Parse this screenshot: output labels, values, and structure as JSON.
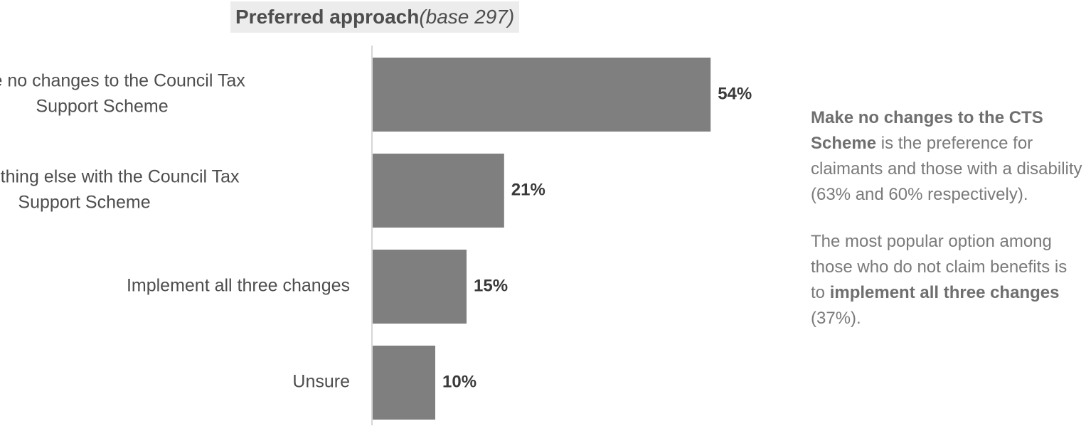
{
  "title": {
    "main": "Preferred approach",
    "sub": "(base 297)"
  },
  "chart_data": {
    "type": "bar",
    "orientation": "horizontal",
    "categories": [
      "Make no changes to the Council Tax Support Scheme",
      "Do something else with the Council Tax Support Scheme",
      "Implement all three changes",
      "Unsure"
    ],
    "category_lines": [
      [
        "Make no changes to the Council Tax",
        "Support Scheme"
      ],
      [
        "Do something else with the Council Tax",
        "Support Scheme"
      ],
      [
        "Implement all three changes"
      ],
      [
        "Unsure"
      ]
    ],
    "values": [
      54,
      21,
      15,
      10
    ],
    "value_labels": [
      "54%",
      "21%",
      "15%",
      "10%"
    ],
    "unit": "%",
    "bar_color": "#7f7f7f",
    "grid": false,
    "legend": "none"
  },
  "commentary": {
    "p1_bold": "Make no changes to the CTS Scheme",
    "p1_rest": " is the preference for claimants and those with a disability (63% and 60% respectively).",
    "p2_start": "The most popular option among those who do not claim benefits is to ",
    "p2_bold": "implement all three changes",
    "p2_end": " (37%)."
  }
}
